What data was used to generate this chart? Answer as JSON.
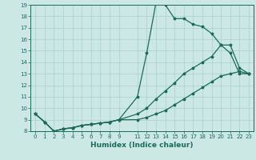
{
  "xlabel": "Humidex (Indice chaleur)",
  "bg_color": "#cce8e4",
  "grid_color": "#aad0cc",
  "line_color": "#1a6b5a",
  "xlim": [
    -0.5,
    23.5
  ],
  "ylim": [
    8,
    19
  ],
  "xticks": [
    0,
    1,
    2,
    3,
    4,
    5,
    6,
    7,
    8,
    9,
    11,
    12,
    13,
    14,
    15,
    16,
    17,
    18,
    19,
    20,
    21,
    22,
    23
  ],
  "yticks": [
    8,
    9,
    10,
    11,
    12,
    13,
    14,
    15,
    16,
    17,
    18,
    19
  ],
  "line1_x": [
    0,
    1,
    2,
    3,
    4,
    5,
    6,
    7,
    8,
    9,
    11,
    12,
    13,
    14,
    15,
    16,
    17,
    18,
    19,
    20,
    21,
    22,
    23
  ],
  "line1_y": [
    9.5,
    8.8,
    8.0,
    8.2,
    8.3,
    8.5,
    8.6,
    8.7,
    8.8,
    9.0,
    11.0,
    14.8,
    19.2,
    19.0,
    17.8,
    17.8,
    17.3,
    17.1,
    16.5,
    15.5,
    14.8,
    13.0,
    13.0
  ],
  "line2_x": [
    0,
    1,
    2,
    3,
    4,
    5,
    6,
    7,
    8,
    9,
    11,
    12,
    13,
    14,
    15,
    16,
    17,
    18,
    19,
    20,
    21,
    22,
    23
  ],
  "line2_y": [
    9.5,
    8.8,
    8.0,
    8.2,
    8.3,
    8.5,
    8.6,
    8.7,
    8.8,
    9.0,
    9.5,
    10.0,
    10.8,
    11.5,
    12.2,
    13.0,
    13.5,
    14.0,
    14.5,
    15.5,
    15.5,
    13.5,
    13.0
  ],
  "line3_x": [
    0,
    1,
    2,
    3,
    4,
    5,
    6,
    7,
    8,
    9,
    11,
    12,
    13,
    14,
    15,
    16,
    17,
    18,
    19,
    20,
    21,
    22,
    23
  ],
  "line3_y": [
    9.5,
    8.8,
    8.0,
    8.2,
    8.3,
    8.5,
    8.6,
    8.7,
    8.8,
    9.0,
    9.0,
    9.2,
    9.5,
    9.8,
    10.3,
    10.8,
    11.3,
    11.8,
    12.3,
    12.8,
    13.0,
    13.2,
    13.0
  ]
}
